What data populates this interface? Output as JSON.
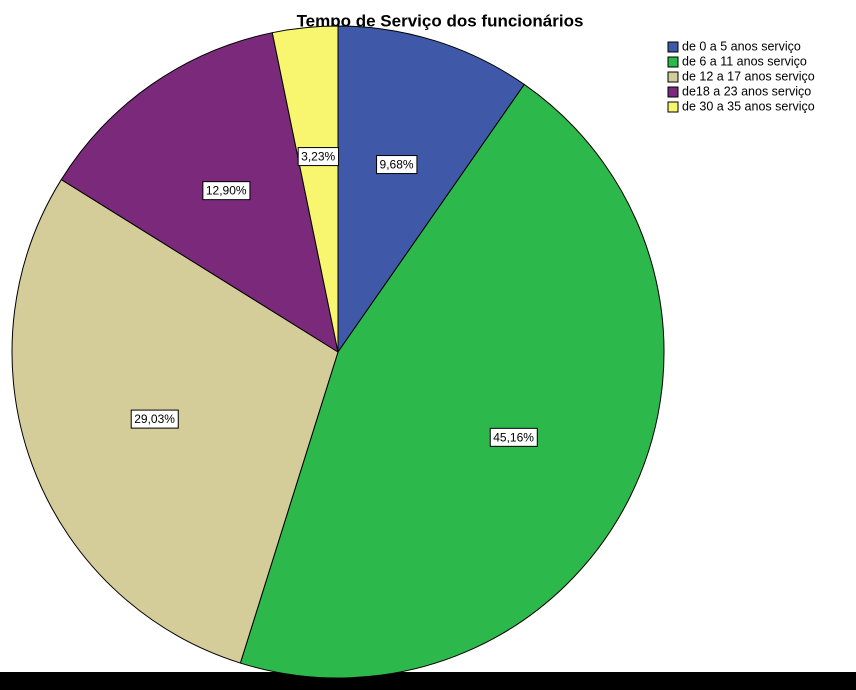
{
  "chart_data": {
    "type": "pie",
    "title": "Tempo de Serviço dos funcionários",
    "categories": [
      "de 0 a 5 anos serviço",
      "de 6 a 11 anos serviço",
      "de 12 a 17 anos serviço",
      "de18 a 23 anos serviço",
      "de 30 a 35 anos serviço"
    ],
    "values": [
      9.68,
      45.16,
      29.03,
      12.9,
      3.23
    ],
    "value_labels": [
      "9,68%",
      "45,16%",
      "29,03%",
      "12,90%",
      "3,23%"
    ],
    "colors": [
      "#3f58a8",
      "#2db84b",
      "#d4cd9a",
      "#7b2a7b",
      "#f8f66e"
    ],
    "legend": "upper right"
  }
}
